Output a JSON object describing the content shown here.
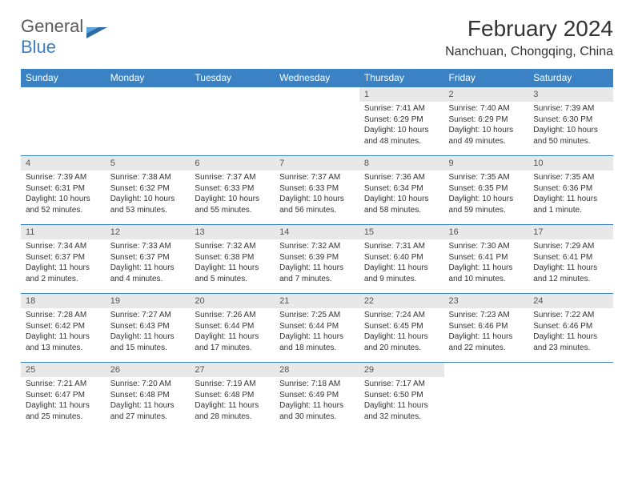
{
  "logo": {
    "text_gray": "General",
    "text_blue": "Blue"
  },
  "header": {
    "month_title": "February 2024",
    "location": "Nanchuan, Chongqing, China"
  },
  "colors": {
    "header_bg": "#3b82c4",
    "header_text": "#ffffff",
    "daynum_bg": "#e8e8e8",
    "border": "#3b82c4",
    "body_text": "#333333"
  },
  "day_labels": [
    "Sunday",
    "Monday",
    "Tuesday",
    "Wednesday",
    "Thursday",
    "Friday",
    "Saturday"
  ],
  "weeks": [
    [
      null,
      null,
      null,
      null,
      {
        "n": "1",
        "sr": "7:41 AM",
        "ss": "6:29 PM",
        "dl": "10 hours and 48 minutes."
      },
      {
        "n": "2",
        "sr": "7:40 AM",
        "ss": "6:29 PM",
        "dl": "10 hours and 49 minutes."
      },
      {
        "n": "3",
        "sr": "7:39 AM",
        "ss": "6:30 PM",
        "dl": "10 hours and 50 minutes."
      }
    ],
    [
      {
        "n": "4",
        "sr": "7:39 AM",
        "ss": "6:31 PM",
        "dl": "10 hours and 52 minutes."
      },
      {
        "n": "5",
        "sr": "7:38 AM",
        "ss": "6:32 PM",
        "dl": "10 hours and 53 minutes."
      },
      {
        "n": "6",
        "sr": "7:37 AM",
        "ss": "6:33 PM",
        "dl": "10 hours and 55 minutes."
      },
      {
        "n": "7",
        "sr": "7:37 AM",
        "ss": "6:33 PM",
        "dl": "10 hours and 56 minutes."
      },
      {
        "n": "8",
        "sr": "7:36 AM",
        "ss": "6:34 PM",
        "dl": "10 hours and 58 minutes."
      },
      {
        "n": "9",
        "sr": "7:35 AM",
        "ss": "6:35 PM",
        "dl": "10 hours and 59 minutes."
      },
      {
        "n": "10",
        "sr": "7:35 AM",
        "ss": "6:36 PM",
        "dl": "11 hours and 1 minute."
      }
    ],
    [
      {
        "n": "11",
        "sr": "7:34 AM",
        "ss": "6:37 PM",
        "dl": "11 hours and 2 minutes."
      },
      {
        "n": "12",
        "sr": "7:33 AM",
        "ss": "6:37 PM",
        "dl": "11 hours and 4 minutes."
      },
      {
        "n": "13",
        "sr": "7:32 AM",
        "ss": "6:38 PM",
        "dl": "11 hours and 5 minutes."
      },
      {
        "n": "14",
        "sr": "7:32 AM",
        "ss": "6:39 PM",
        "dl": "11 hours and 7 minutes."
      },
      {
        "n": "15",
        "sr": "7:31 AM",
        "ss": "6:40 PM",
        "dl": "11 hours and 9 minutes."
      },
      {
        "n": "16",
        "sr": "7:30 AM",
        "ss": "6:41 PM",
        "dl": "11 hours and 10 minutes."
      },
      {
        "n": "17",
        "sr": "7:29 AM",
        "ss": "6:41 PM",
        "dl": "11 hours and 12 minutes."
      }
    ],
    [
      {
        "n": "18",
        "sr": "7:28 AM",
        "ss": "6:42 PM",
        "dl": "11 hours and 13 minutes."
      },
      {
        "n": "19",
        "sr": "7:27 AM",
        "ss": "6:43 PM",
        "dl": "11 hours and 15 minutes."
      },
      {
        "n": "20",
        "sr": "7:26 AM",
        "ss": "6:44 PM",
        "dl": "11 hours and 17 minutes."
      },
      {
        "n": "21",
        "sr": "7:25 AM",
        "ss": "6:44 PM",
        "dl": "11 hours and 18 minutes."
      },
      {
        "n": "22",
        "sr": "7:24 AM",
        "ss": "6:45 PM",
        "dl": "11 hours and 20 minutes."
      },
      {
        "n": "23",
        "sr": "7:23 AM",
        "ss": "6:46 PM",
        "dl": "11 hours and 22 minutes."
      },
      {
        "n": "24",
        "sr": "7:22 AM",
        "ss": "6:46 PM",
        "dl": "11 hours and 23 minutes."
      }
    ],
    [
      {
        "n": "25",
        "sr": "7:21 AM",
        "ss": "6:47 PM",
        "dl": "11 hours and 25 minutes."
      },
      {
        "n": "26",
        "sr": "7:20 AM",
        "ss": "6:48 PM",
        "dl": "11 hours and 27 minutes."
      },
      {
        "n": "27",
        "sr": "7:19 AM",
        "ss": "6:48 PM",
        "dl": "11 hours and 28 minutes."
      },
      {
        "n": "28",
        "sr": "7:18 AM",
        "ss": "6:49 PM",
        "dl": "11 hours and 30 minutes."
      },
      {
        "n": "29",
        "sr": "7:17 AM",
        "ss": "6:50 PM",
        "dl": "11 hours and 32 minutes."
      },
      null,
      null
    ]
  ],
  "labels": {
    "sunrise": "Sunrise:",
    "sunset": "Sunset:",
    "daylight": "Daylight:"
  }
}
